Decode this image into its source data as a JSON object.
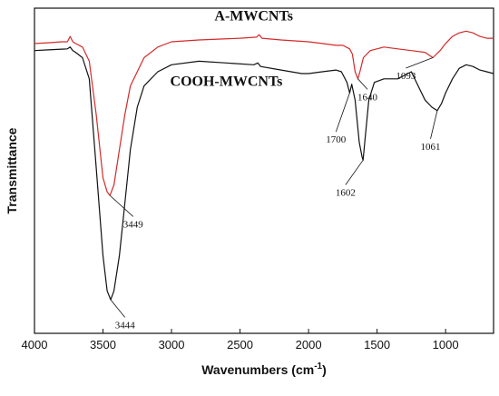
{
  "chart_data": {
    "type": "line",
    "xlabel_main": "Wavenumbers (cm",
    "xlabel_sup": "-1",
    "xlabel_close": ")",
    "ylabel": "Transmittance",
    "xlim": [
      4000,
      650
    ],
    "x_reversed": true,
    "x_ticks": [
      4000,
      3500,
      3000,
      2500,
      2000,
      1500,
      1000
    ],
    "y_ticks_shown": false,
    "grid": false,
    "colors": {
      "A-MWCNTs": "#d42a2a",
      "COOH-MWCNTs": "#111111",
      "axis": "#111111"
    },
    "series": [
      {
        "name": "A-MWCNTs",
        "points": [
          [
            4000,
            0.9
          ],
          [
            3900,
            0.902
          ],
          [
            3800,
            0.905
          ],
          [
            3760,
            0.905
          ],
          [
            3740,
            0.92
          ],
          [
            3720,
            0.905
          ],
          [
            3700,
            0.9
          ],
          [
            3650,
            0.89
          ],
          [
            3600,
            0.85
          ],
          [
            3550,
            0.7
          ],
          [
            3500,
            0.52
          ],
          [
            3470,
            0.48
          ],
          [
            3449,
            0.47
          ],
          [
            3420,
            0.5
          ],
          [
            3380,
            0.6
          ],
          [
            3340,
            0.7
          ],
          [
            3300,
            0.78
          ],
          [
            3200,
            0.86
          ],
          [
            3100,
            0.89
          ],
          [
            3000,
            0.905
          ],
          [
            2800,
            0.91
          ],
          [
            2500,
            0.915
          ],
          [
            2380,
            0.918
          ],
          [
            2360,
            0.925
          ],
          [
            2340,
            0.915
          ],
          [
            2200,
            0.91
          ],
          [
            2000,
            0.905
          ],
          [
            1900,
            0.9
          ],
          [
            1800,
            0.895
          ],
          [
            1750,
            0.895
          ],
          [
            1700,
            0.885
          ],
          [
            1680,
            0.87
          ],
          [
            1660,
            0.82
          ],
          [
            1640,
            0.8
          ],
          [
            1625,
            0.82
          ],
          [
            1600,
            0.86
          ],
          [
            1550,
            0.88
          ],
          [
            1450,
            0.89
          ],
          [
            1350,
            0.885
          ],
          [
            1250,
            0.88
          ],
          [
            1150,
            0.875
          ],
          [
            1093,
            0.86
          ],
          [
            1040,
            0.88
          ],
          [
            1000,
            0.9
          ],
          [
            950,
            0.92
          ],
          [
            900,
            0.93
          ],
          [
            850,
            0.935
          ],
          [
            800,
            0.93
          ],
          [
            750,
            0.92
          ],
          [
            700,
            0.915
          ],
          [
            650,
            0.915
          ]
        ]
      },
      {
        "name": "COOH-MWCNTs",
        "points": [
          [
            4000,
            0.88
          ],
          [
            3900,
            0.882
          ],
          [
            3800,
            0.884
          ],
          [
            3760,
            0.885
          ],
          [
            3740,
            0.89
          ],
          [
            3720,
            0.88
          ],
          [
            3700,
            0.875
          ],
          [
            3650,
            0.86
          ],
          [
            3600,
            0.8
          ],
          [
            3550,
            0.55
          ],
          [
            3500,
            0.3
          ],
          [
            3470,
            0.2
          ],
          [
            3444,
            0.175
          ],
          [
            3420,
            0.2
          ],
          [
            3380,
            0.3
          ],
          [
            3340,
            0.45
          ],
          [
            3300,
            0.6
          ],
          [
            3250,
            0.72
          ],
          [
            3200,
            0.78
          ],
          [
            3100,
            0.82
          ],
          [
            3000,
            0.84
          ],
          [
            2800,
            0.85
          ],
          [
            2600,
            0.845
          ],
          [
            2400,
            0.84
          ],
          [
            2370,
            0.845
          ],
          [
            2350,
            0.835
          ],
          [
            2200,
            0.825
          ],
          [
            2050,
            0.815
          ],
          [
            2000,
            0.815
          ],
          [
            1900,
            0.82
          ],
          [
            1800,
            0.825
          ],
          [
            1760,
            0.82
          ],
          [
            1720,
            0.79
          ],
          [
            1700,
            0.76
          ],
          [
            1685,
            0.785
          ],
          [
            1660,
            0.74
          ],
          [
            1630,
            0.62
          ],
          [
            1610,
            0.58
          ],
          [
            1602,
            0.57
          ],
          [
            1590,
            0.62
          ],
          [
            1560,
            0.74
          ],
          [
            1520,
            0.79
          ],
          [
            1450,
            0.8
          ],
          [
            1400,
            0.8
          ],
          [
            1350,
            0.8
          ],
          [
            1300,
            0.81
          ],
          [
            1250,
            0.82
          ],
          [
            1200,
            0.78
          ],
          [
            1150,
            0.74
          ],
          [
            1100,
            0.72
          ],
          [
            1061,
            0.71
          ],
          [
            1030,
            0.73
          ],
          [
            1000,
            0.76
          ],
          [
            950,
            0.8
          ],
          [
            900,
            0.83
          ],
          [
            850,
            0.84
          ],
          [
            800,
            0.835
          ],
          [
            750,
            0.825
          ],
          [
            700,
            0.82
          ],
          [
            650,
            0.815
          ]
        ]
      }
    ],
    "series_labels": [
      {
        "text": "A-MWCNTs",
        "x": 2400,
        "y": 0.965
      },
      {
        "text": "COOH-MWCNTs",
        "x": 2600,
        "y": 0.78
      }
    ],
    "annotations": [
      {
        "text": "3449",
        "point": [
          3449,
          0.47
        ],
        "label": [
          3280,
          0.4
        ]
      },
      {
        "text": "3444",
        "point": [
          3444,
          0.175
        ],
        "label": [
          3340,
          0.115
        ]
      },
      {
        "text": "1640",
        "point": [
          1640,
          0.8
        ],
        "label": [
          1570,
          0.76
        ]
      },
      {
        "text": "1093",
        "point": [
          1093,
          0.86
        ],
        "label": [
          1290,
          0.82
        ]
      },
      {
        "text": "1700",
        "point": [
          1700,
          0.76
        ],
        "label": [
          1800,
          0.64
        ]
      },
      {
        "text": "1602",
        "point": [
          1602,
          0.57
        ],
        "label": [
          1730,
          0.49
        ]
      },
      {
        "text": "1061",
        "point": [
          1061,
          0.71
        ],
        "label": [
          1110,
          0.62
        ]
      }
    ],
    "ylim": [
      0.08,
      1.0
    ]
  }
}
